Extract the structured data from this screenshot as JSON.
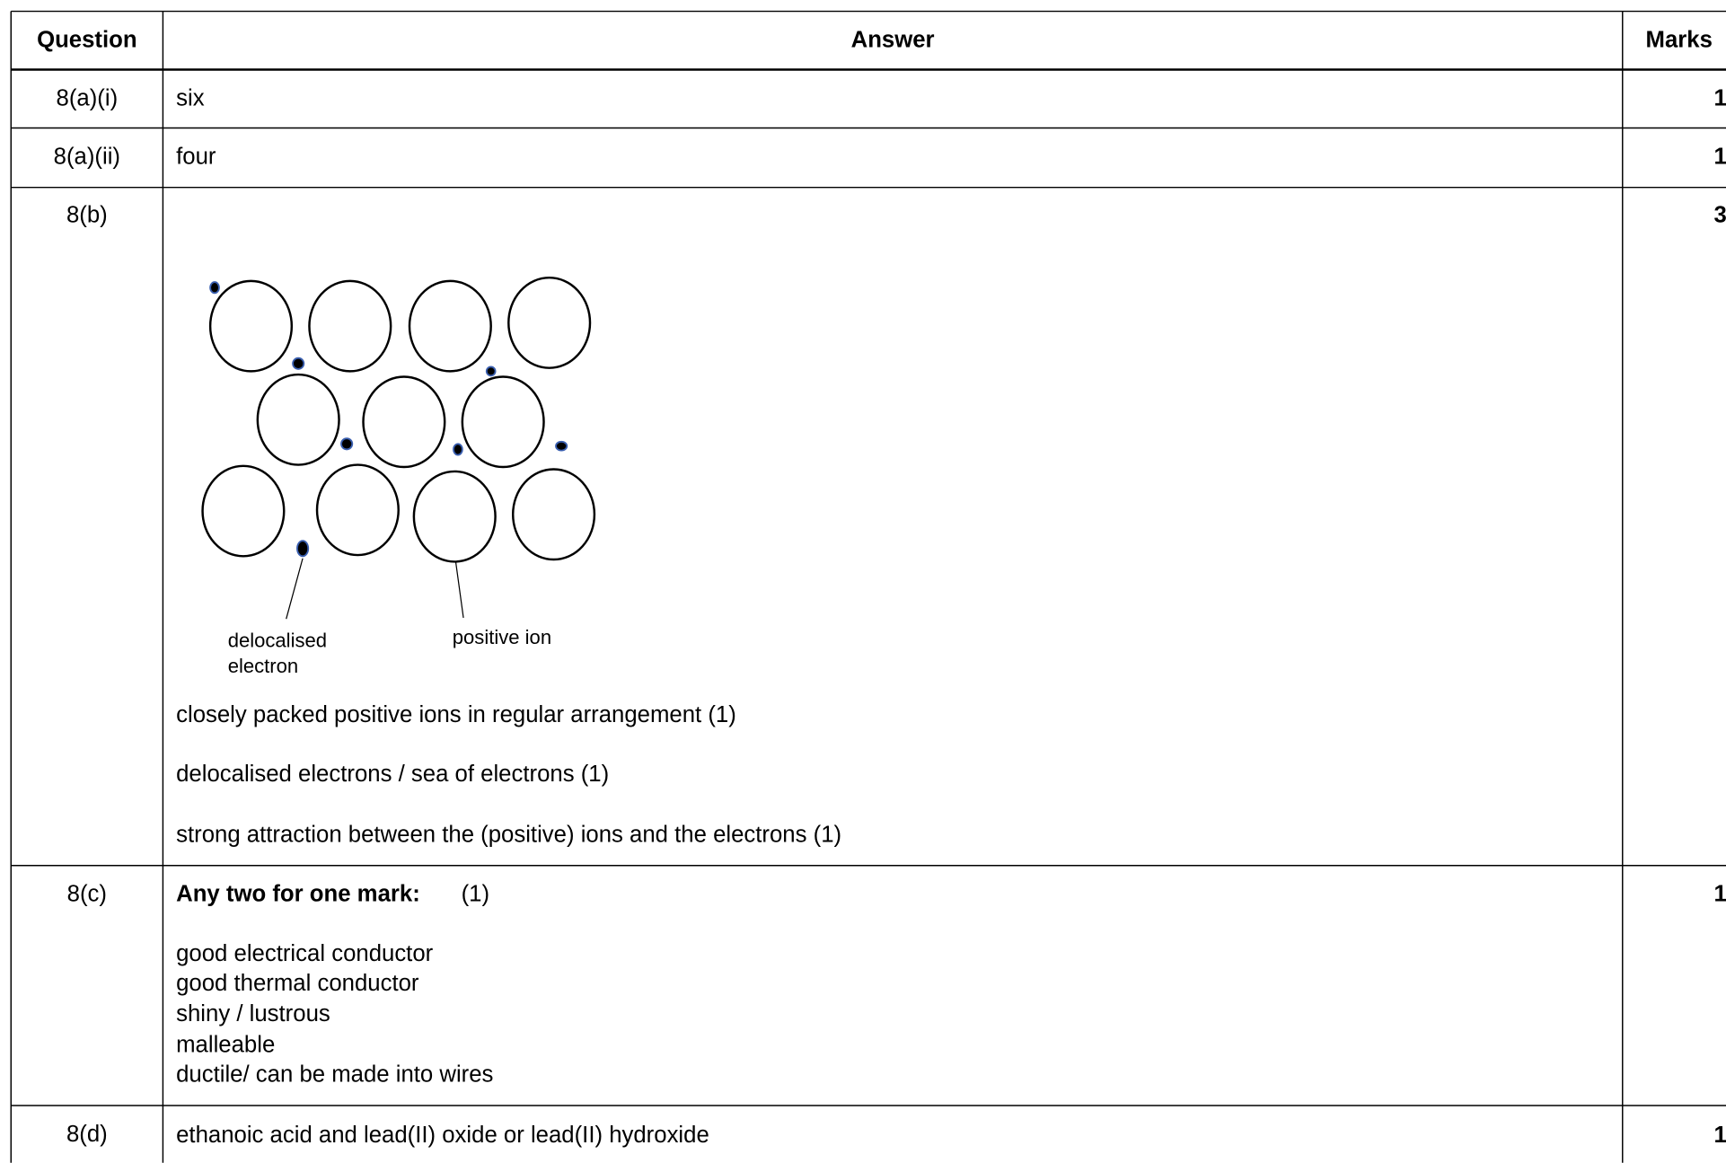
{
  "header": {
    "question": "Question",
    "answer": "Answer",
    "marks": "Marks"
  },
  "rows": [
    {
      "question": "8(a)(i)",
      "answer": [
        "six"
      ],
      "marks": "1"
    },
    {
      "question": "8(a)(ii)",
      "answer": [
        "four"
      ],
      "marks": "1"
    },
    {
      "question": "8(b)",
      "diagram_labels": {
        "electron": [
          "delocalised",
          "electron"
        ],
        "ion": "positive ion"
      },
      "answer": [
        "closely packed positive ions in regular arrangement (1)",
        "delocalised electrons / sea of electrons (1)",
        "strong attraction between the (positive) ions and the electrons (1)"
      ],
      "marks": "3"
    },
    {
      "question": "8(c)",
      "answer_heading": "Any two for one mark:",
      "answer_heading_mark": "(1)",
      "answer": [
        "good electrical conductor",
        "good thermal conductor",
        "shiny / lustrous",
        "malleable",
        "ductile/ can be made into wires"
      ],
      "marks": "1"
    },
    {
      "question": "8(d)",
      "answer": [
        "ethanoic acid and lead(II) oxide or lead(II) hydroxide"
      ],
      "marks": "1"
    }
  ]
}
